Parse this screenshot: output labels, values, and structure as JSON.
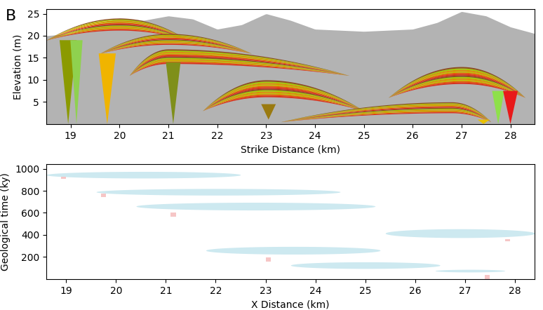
{
  "panel_label": "B",
  "chart_data": [
    {
      "type": "cross_section",
      "x_label": "Strike Distance (km)",
      "y_label": "Elevation (m)",
      "xlim": [
        18.5,
        28.5
      ],
      "xticks": [
        19,
        20,
        21,
        22,
        23,
        24,
        25,
        26,
        27,
        28
      ],
      "ylim": [
        0,
        26
      ],
      "yticks": [
        5,
        10,
        15,
        20,
        25
      ],
      "color": "#b3b3b3",
      "surface": {
        "x": [
          18.5,
          19,
          19.5,
          20,
          20.5,
          21,
          21.5,
          22,
          22.5,
          23,
          23.5,
          24,
          25,
          26,
          26.5,
          27,
          27.5,
          28,
          28.5
        ],
        "values": [
          20,
          20.5,
          22.5,
          24,
          23.5,
          24.5,
          23.8,
          21.5,
          22.5,
          25,
          23.5,
          21.5,
          21,
          21.5,
          23,
          25.5,
          24.5,
          22,
          20.5
        ]
      },
      "lenses": [
        {
          "start": 18.5,
          "peak": 20.0,
          "end": 21.4,
          "base": 19,
          "top": 24
        },
        {
          "start": 19.6,
          "peak": 21.0,
          "end": 22.7,
          "base": 16,
          "top": 20.5
        },
        {
          "start": 20.2,
          "peak": 21.0,
          "end": 24.7,
          "base": 11,
          "top": 17
        },
        {
          "start": 21.7,
          "peak": 23.0,
          "end": 25.0,
          "base": 3,
          "top": 10
        },
        {
          "start": 23.3,
          "peak": 26.8,
          "end": 27.6,
          "base": 0.5,
          "top": 5
        },
        {
          "start": 25.5,
          "peak": 27.0,
          "end": 28.3,
          "base": 6,
          "top": 13
        }
      ],
      "fans": [
        {
          "x": 18.95,
          "bottom": 0,
          "top": 19,
          "width": 0.35,
          "color": "#8b9a00"
        },
        {
          "x": 19.12,
          "bottom": 0,
          "top": 19,
          "width": 0.25,
          "color": "#8fd14f"
        },
        {
          "x": 19.75,
          "bottom": 0,
          "top": 16,
          "width": 0.35,
          "color": "#f0b400"
        },
        {
          "x": 21.1,
          "bottom": 0,
          "top": 14,
          "width": 0.3,
          "color": "#7f8f1a"
        },
        {
          "x": 23.05,
          "bottom": 1,
          "top": 4.5,
          "width": 0.3,
          "color": "#9a7a10"
        },
        {
          "x": 27.45,
          "bottom": 0,
          "top": 1,
          "width": 0.25,
          "color": "#e8c000"
        },
        {
          "x": 27.75,
          "bottom": 0,
          "top": 7.5,
          "width": 0.25,
          "color": "#8ee04a"
        },
        {
          "x": 28.0,
          "bottom": 0,
          "top": 7.5,
          "width": 0.3,
          "color": "#e8191a"
        }
      ]
    },
    {
      "type": "timeline",
      "x_label": "X Distance (km)",
      "y_label": "Geological time (ky)",
      "xlim": [
        18.6,
        28.4
      ],
      "xticks": [
        19,
        20,
        21,
        22,
        23,
        24,
        25,
        26,
        27,
        28
      ],
      "ylim": [
        0,
        1040
      ],
      "yticks": [
        200,
        400,
        600,
        800,
        1000
      ],
      "color": "#cde9f0",
      "bodies": [
        {
          "start": 18.6,
          "end": 22.5,
          "time": 945,
          "thickness": 30
        },
        {
          "start": 19.6,
          "end": 24.5,
          "time": 790,
          "thickness": 30
        },
        {
          "start": 20.4,
          "end": 25.2,
          "time": 660,
          "thickness": 35
        },
        {
          "start": 25.4,
          "end": 28.4,
          "time": 415,
          "thickness": 40
        },
        {
          "start": 21.8,
          "end": 25.3,
          "time": 260,
          "thickness": 35
        },
        {
          "start": 23.5,
          "end": 26.5,
          "time": 125,
          "thickness": 30
        },
        {
          "start": 26.4,
          "end": 27.8,
          "time": 75,
          "thickness": 12
        }
      ],
      "markers": {
        "color": "#f6c6c6",
        "x": [
          18.95,
          19.75,
          21.15,
          23.05,
          27.85,
          27.45
        ],
        "time_low": [
          910,
          745,
          565,
          160,
          340,
          0
        ],
        "time_high": [
          930,
          775,
          600,
          195,
          360,
          40
        ]
      }
    }
  ]
}
